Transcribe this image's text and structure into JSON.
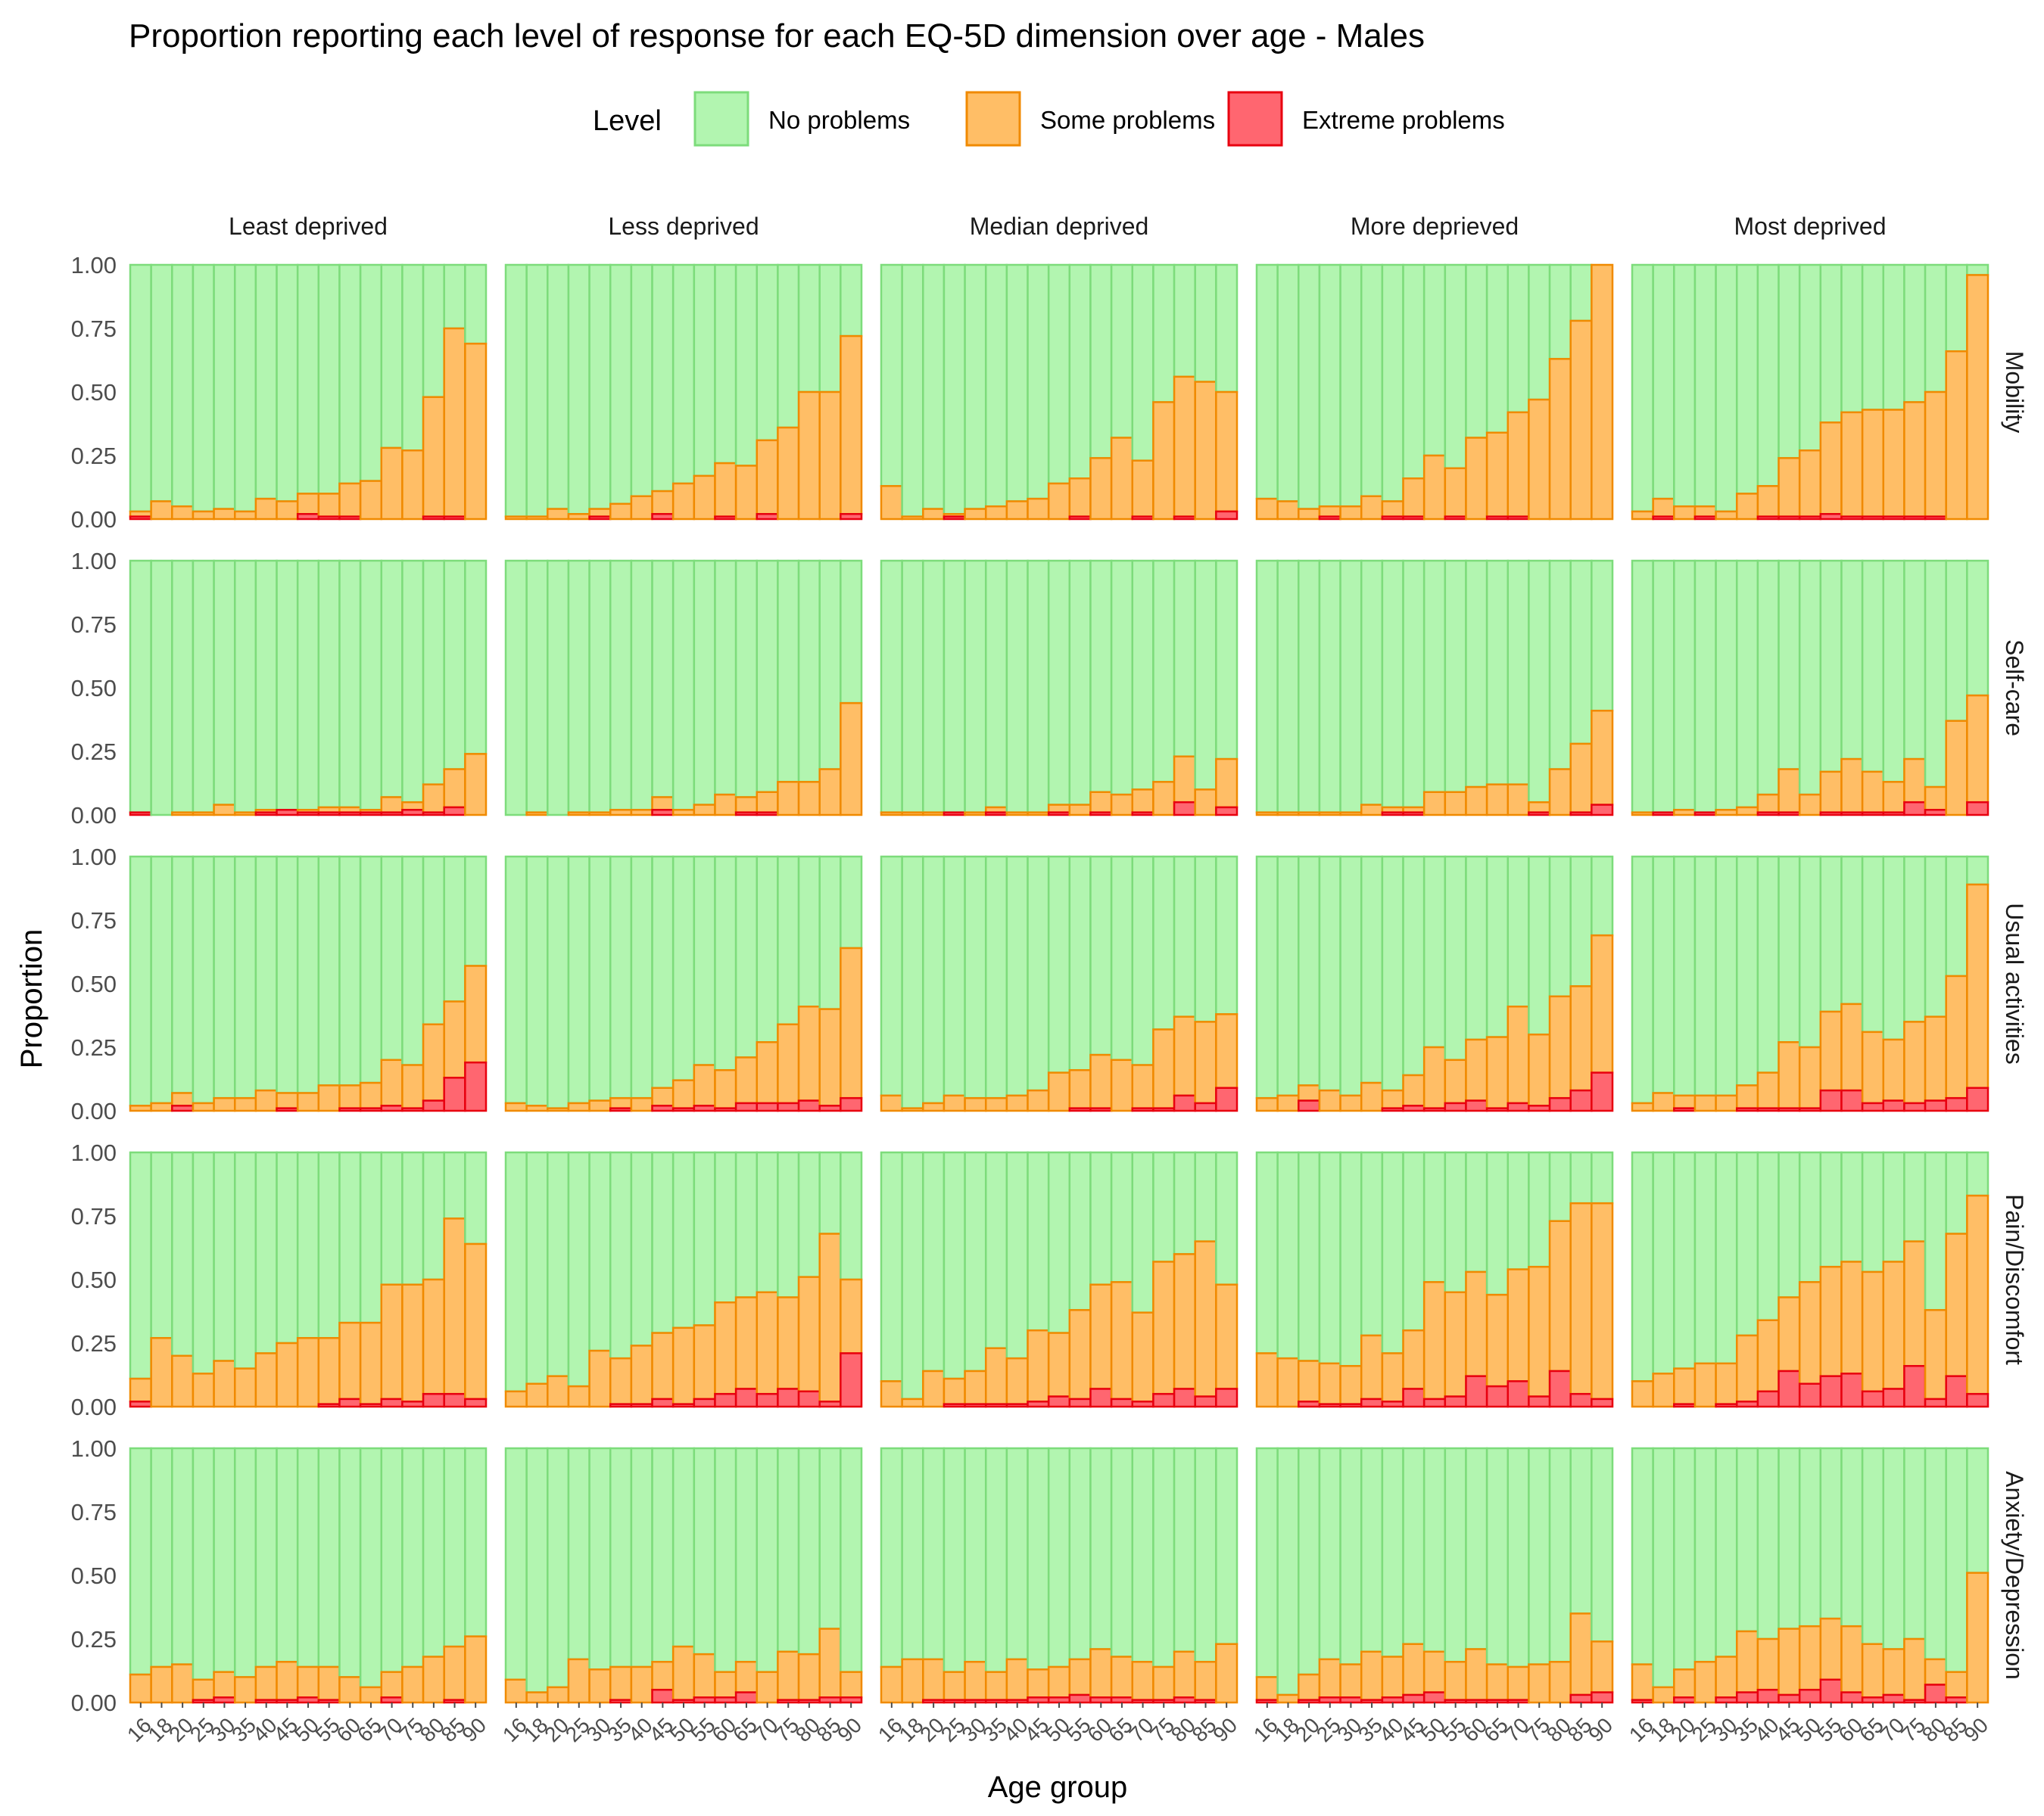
{
  "chart_data": {
    "type": "bar",
    "stacked": true,
    "title": "Proportion reporting each level of response for each EQ-5D dimension over age - Males",
    "xlabel": "Age group",
    "ylabel": "Proportion",
    "ylim": [
      0,
      1
    ],
    "yticks": [
      "0.00",
      "0.25",
      "0.50",
      "0.75",
      "1.00"
    ],
    "legend": {
      "title": "Level",
      "position": "top",
      "items": [
        {
          "name": "No problems",
          "fill": "#b2f5b0",
          "stroke": "#7ddc7b"
        },
        {
          "name": "Some problems",
          "fill": "#ffbe66",
          "stroke": "#f08a00"
        },
        {
          "name": "Extreme problems",
          "fill": "#ff6670",
          "stroke": "#e8000f"
        }
      ]
    },
    "columns": [
      "Least deprived",
      "Less deprived",
      "Median deprived",
      "More deprieved",
      "Most deprived"
    ],
    "rows": [
      "Mobility",
      "Self-care",
      "Usual activities",
      "Pain/Discomfort",
      "Anxiety/Depression"
    ],
    "age_groups": [
      "16",
      "18",
      "20",
      "25",
      "30",
      "35",
      "40",
      "45",
      "50",
      "55",
      "60",
      "65",
      "70",
      "75",
      "80",
      "85",
      "90"
    ],
    "x_tick_labels": [
      "16",
      "18",
      "20",
      "25",
      "30",
      "35",
      "40",
      "45",
      "50",
      "55",
      "60",
      "65",
      "70",
      "75",
      "80",
      "85",
      "90"
    ],
    "panels": [
      [
        {
          "problems": [
            0.03,
            0.07,
            0.05,
            0.03,
            0.04,
            0.03,
            0.08,
            0.07,
            0.1,
            0.1,
            0.14,
            0.15,
            0.28,
            0.27,
            0.48,
            0.75,
            0.69
          ],
          "extreme": [
            0.01,
            0,
            0,
            0,
            0,
            0,
            0,
            0,
            0.02,
            0.01,
            0.01,
            0,
            0,
            0,
            0.01,
            0.01,
            0
          ]
        },
        {
          "problems": [
            0.01,
            0.01,
            0.04,
            0.02,
            0.04,
            0.06,
            0.09,
            0.11,
            0.14,
            0.17,
            0.22,
            0.21,
            0.31,
            0.36,
            0.5,
            0.5,
            0.72
          ],
          "extreme": [
            0,
            0,
            0,
            0,
            0.01,
            0,
            0,
            0.02,
            0,
            0,
            0.01,
            0,
            0.02,
            0,
            0,
            0,
            0.02
          ]
        },
        {
          "problems": [
            0.13,
            0.01,
            0.04,
            0.02,
            0.04,
            0.05,
            0.07,
            0.08,
            0.14,
            0.16,
            0.24,
            0.32,
            0.23,
            0.46,
            0.56,
            0.54,
            0.5
          ],
          "extreme": [
            0,
            0,
            0,
            0.01,
            0,
            0,
            0,
            0,
            0,
            0.01,
            0,
            0,
            0.01,
            0,
            0.01,
            0,
            0.03
          ]
        },
        {
          "problems": [
            0.08,
            0.07,
            0.04,
            0.05,
            0.05,
            0.09,
            0.07,
            0.16,
            0.25,
            0.2,
            0.32,
            0.34,
            0.42,
            0.47,
            0.63,
            0.78,
            1.0
          ],
          "extreme": [
            0,
            0,
            0,
            0.01,
            0,
            0,
            0.01,
            0.01,
            0,
            0.01,
            0,
            0.01,
            0.01,
            0,
            0,
            0,
            0
          ]
        },
        {
          "problems": [
            0.03,
            0.08,
            0.05,
            0.05,
            0.03,
            0.1,
            0.13,
            0.24,
            0.27,
            0.38,
            0.42,
            0.43,
            0.43,
            0.46,
            0.5,
            0.66,
            0.96
          ],
          "extreme": [
            0,
            0.01,
            0,
            0.01,
            0,
            0,
            0.01,
            0.01,
            0.01,
            0.02,
            0.01,
            0.01,
            0.01,
            0.01,
            0.01,
            0,
            0
          ]
        }
      ],
      [
        {
          "problems": [
            0.01,
            0,
            0.01,
            0.01,
            0.04,
            0.01,
            0.02,
            0.02,
            0.02,
            0.03,
            0.03,
            0.02,
            0.07,
            0.05,
            0.12,
            0.18,
            0.24
          ],
          "extreme": [
            0.01,
            0,
            0,
            0,
            0,
            0,
            0.01,
            0.02,
            0.01,
            0.01,
            0.01,
            0.01,
            0.01,
            0.02,
            0.01,
            0.03,
            0
          ]
        },
        {
          "problems": [
            0,
            0.01,
            0,
            0.01,
            0.01,
            0.02,
            0.02,
            0.07,
            0.02,
            0.04,
            0.08,
            0.07,
            0.09,
            0.13,
            0.13,
            0.18,
            0.44
          ],
          "extreme": [
            0,
            0,
            0,
            0,
            0,
            0,
            0,
            0.02,
            0,
            0,
            0,
            0.01,
            0.01,
            0,
            0,
            0,
            0
          ]
        },
        {
          "problems": [
            0.01,
            0.01,
            0.01,
            0.01,
            0.01,
            0.03,
            0.01,
            0.01,
            0.04,
            0.04,
            0.09,
            0.08,
            0.1,
            0.13,
            0.23,
            0.1,
            0.22
          ],
          "extreme": [
            0,
            0,
            0,
            0.01,
            0,
            0.01,
            0,
            0,
            0.01,
            0,
            0.01,
            0,
            0.01,
            0,
            0.05,
            0,
            0.03
          ]
        },
        {
          "problems": [
            0.01,
            0.01,
            0.01,
            0.01,
            0.01,
            0.04,
            0.03,
            0.03,
            0.09,
            0.09,
            0.11,
            0.12,
            0.12,
            0.05,
            0.18,
            0.28,
            0.41
          ],
          "extreme": [
            0,
            0,
            0,
            0,
            0,
            0,
            0.01,
            0.01,
            0,
            0,
            0,
            0,
            0,
            0.01,
            0,
            0.01,
            0.04
          ]
        },
        {
          "problems": [
            0.01,
            0.01,
            0.02,
            0.01,
            0.02,
            0.03,
            0.08,
            0.18,
            0.08,
            0.17,
            0.22,
            0.17,
            0.13,
            0.22,
            0.11,
            0.37,
            0.47
          ],
          "extreme": [
            0,
            0.01,
            0,
            0.01,
            0,
            0,
            0.01,
            0.01,
            0,
            0.01,
            0.01,
            0.01,
            0.01,
            0.05,
            0.02,
            0,
            0.05
          ]
        }
      ],
      [
        {
          "problems": [
            0.02,
            0.03,
            0.07,
            0.03,
            0.05,
            0.05,
            0.08,
            0.07,
            0.07,
            0.1,
            0.1,
            0.11,
            0.2,
            0.18,
            0.34,
            0.43,
            0.57
          ],
          "extreme": [
            0,
            0,
            0.02,
            0,
            0,
            0,
            0,
            0.01,
            0,
            0,
            0.01,
            0.01,
            0.02,
            0.01,
            0.04,
            0.13,
            0.19
          ]
        },
        {
          "problems": [
            0.03,
            0.02,
            0.01,
            0.03,
            0.04,
            0.05,
            0.05,
            0.09,
            0.12,
            0.18,
            0.16,
            0.21,
            0.27,
            0.34,
            0.41,
            0.4,
            0.64
          ],
          "extreme": [
            0,
            0,
            0,
            0,
            0,
            0.01,
            0,
            0.02,
            0.01,
            0.02,
            0.01,
            0.03,
            0.03,
            0.03,
            0.04,
            0.02,
            0.05
          ]
        },
        {
          "problems": [
            0.06,
            0.01,
            0.03,
            0.06,
            0.05,
            0.05,
            0.06,
            0.08,
            0.15,
            0.16,
            0.22,
            0.2,
            0.18,
            0.32,
            0.37,
            0.35,
            0.38
          ],
          "extreme": [
            0,
            0,
            0,
            0,
            0,
            0,
            0,
            0,
            0,
            0.01,
            0.01,
            0,
            0.01,
            0.01,
            0.06,
            0.03,
            0.09
          ]
        },
        {
          "problems": [
            0.05,
            0.06,
            0.1,
            0.08,
            0.06,
            0.11,
            0.08,
            0.14,
            0.25,
            0.2,
            0.28,
            0.29,
            0.41,
            0.3,
            0.45,
            0.49,
            0.69
          ],
          "extreme": [
            0,
            0,
            0.04,
            0,
            0,
            0,
            0.01,
            0.02,
            0.01,
            0.03,
            0.04,
            0.01,
            0.03,
            0.02,
            0.05,
            0.08,
            0.15
          ]
        },
        {
          "problems": [
            0.03,
            0.07,
            0.06,
            0.06,
            0.06,
            0.1,
            0.15,
            0.27,
            0.25,
            0.39,
            0.42,
            0.31,
            0.28,
            0.35,
            0.37,
            0.53,
            0.89
          ],
          "extreme": [
            0,
            0,
            0.01,
            0,
            0,
            0.01,
            0.01,
            0.01,
            0.01,
            0.08,
            0.08,
            0.03,
            0.04,
            0.03,
            0.04,
            0.05,
            0.09
          ]
        }
      ],
      [
        {
          "problems": [
            0.11,
            0.27,
            0.2,
            0.13,
            0.18,
            0.15,
            0.21,
            0.25,
            0.27,
            0.27,
            0.33,
            0.33,
            0.48,
            0.48,
            0.5,
            0.74,
            0.64
          ],
          "extreme": [
            0.02,
            0,
            0,
            0,
            0,
            0,
            0,
            0,
            0,
            0.01,
            0.03,
            0.01,
            0.03,
            0.02,
            0.05,
            0.05,
            0.03
          ]
        },
        {
          "problems": [
            0.06,
            0.09,
            0.12,
            0.08,
            0.22,
            0.19,
            0.24,
            0.29,
            0.31,
            0.32,
            0.41,
            0.43,
            0.45,
            0.43,
            0.51,
            0.68,
            0.5
          ],
          "extreme": [
            0,
            0,
            0,
            0,
            0,
            0.01,
            0.01,
            0.03,
            0.01,
            0.03,
            0.05,
            0.07,
            0.05,
            0.07,
            0.06,
            0.02,
            0.21
          ]
        },
        {
          "problems": [
            0.1,
            0.03,
            0.14,
            0.11,
            0.14,
            0.23,
            0.19,
            0.3,
            0.29,
            0.38,
            0.48,
            0.49,
            0.37,
            0.57,
            0.6,
            0.65,
            0.48
          ],
          "extreme": [
            0,
            0,
            0,
            0.01,
            0.01,
            0.01,
            0.01,
            0.02,
            0.04,
            0.03,
            0.07,
            0.03,
            0.02,
            0.05,
            0.07,
            0.04,
            0.07
          ]
        },
        {
          "problems": [
            0.21,
            0.19,
            0.18,
            0.17,
            0.16,
            0.28,
            0.21,
            0.3,
            0.49,
            0.45,
            0.53,
            0.44,
            0.54,
            0.55,
            0.73,
            0.8,
            0.8
          ],
          "extreme": [
            0,
            0,
            0.02,
            0.01,
            0.01,
            0.03,
            0.02,
            0.07,
            0.03,
            0.04,
            0.12,
            0.08,
            0.1,
            0.04,
            0.14,
            0.05,
            0.03
          ]
        },
        {
          "problems": [
            0.1,
            0.13,
            0.15,
            0.17,
            0.17,
            0.28,
            0.34,
            0.43,
            0.49,
            0.55,
            0.57,
            0.53,
            0.57,
            0.65,
            0.38,
            0.68,
            0.83
          ],
          "extreme": [
            0,
            0,
            0.01,
            0,
            0.01,
            0.02,
            0.06,
            0.14,
            0.09,
            0.12,
            0.13,
            0.06,
            0.07,
            0.16,
            0.03,
            0.12,
            0.05
          ]
        }
      ],
      [
        {
          "problems": [
            0.11,
            0.14,
            0.15,
            0.09,
            0.12,
            0.1,
            0.14,
            0.16,
            0.14,
            0.14,
            0.1,
            0.06,
            0.12,
            0.14,
            0.18,
            0.22,
            0.26
          ],
          "extreme": [
            0,
            0,
            0,
            0.01,
            0.02,
            0,
            0.01,
            0.01,
            0.02,
            0.01,
            0,
            0,
            0.02,
            0,
            0,
            0.01,
            0
          ]
        },
        {
          "problems": [
            0.09,
            0.04,
            0.06,
            0.17,
            0.13,
            0.14,
            0.14,
            0.16,
            0.22,
            0.19,
            0.12,
            0.16,
            0.12,
            0.2,
            0.19,
            0.29,
            0.12
          ],
          "extreme": [
            0,
            0,
            0,
            0,
            0,
            0.01,
            0,
            0.05,
            0.01,
            0.02,
            0.02,
            0.04,
            0,
            0.01,
            0.01,
            0.02,
            0.02
          ]
        },
        {
          "problems": [
            0.14,
            0.17,
            0.17,
            0.12,
            0.16,
            0.12,
            0.17,
            0.13,
            0.14,
            0.17,
            0.21,
            0.18,
            0.16,
            0.14,
            0.2,
            0.16,
            0.23
          ],
          "extreme": [
            0,
            0,
            0.01,
            0.01,
            0.01,
            0.01,
            0.01,
            0.02,
            0.02,
            0.03,
            0.02,
            0.02,
            0.01,
            0.01,
            0.02,
            0.01,
            0
          ]
        },
        {
          "problems": [
            0.1,
            0.03,
            0.11,
            0.17,
            0.15,
            0.2,
            0.18,
            0.23,
            0.2,
            0.16,
            0.21,
            0.15,
            0.14,
            0.15,
            0.16,
            0.35,
            0.24
          ],
          "extreme": [
            0.01,
            0,
            0.01,
            0.02,
            0.02,
            0.01,
            0.02,
            0.03,
            0.04,
            0.01,
            0.01,
            0.01,
            0.01,
            0,
            0,
            0.03,
            0.04
          ]
        },
        {
          "problems": [
            0.15,
            0.06,
            0.13,
            0.16,
            0.18,
            0.28,
            0.25,
            0.29,
            0.3,
            0.33,
            0.3,
            0.23,
            0.21,
            0.25,
            0.17,
            0.12,
            0.51
          ],
          "extreme": [
            0.01,
            0,
            0.02,
            0,
            0.02,
            0.04,
            0.05,
            0.03,
            0.05,
            0.09,
            0.04,
            0.02,
            0.03,
            0.01,
            0.07,
            0.02,
            0
          ]
        }
      ]
    ]
  }
}
